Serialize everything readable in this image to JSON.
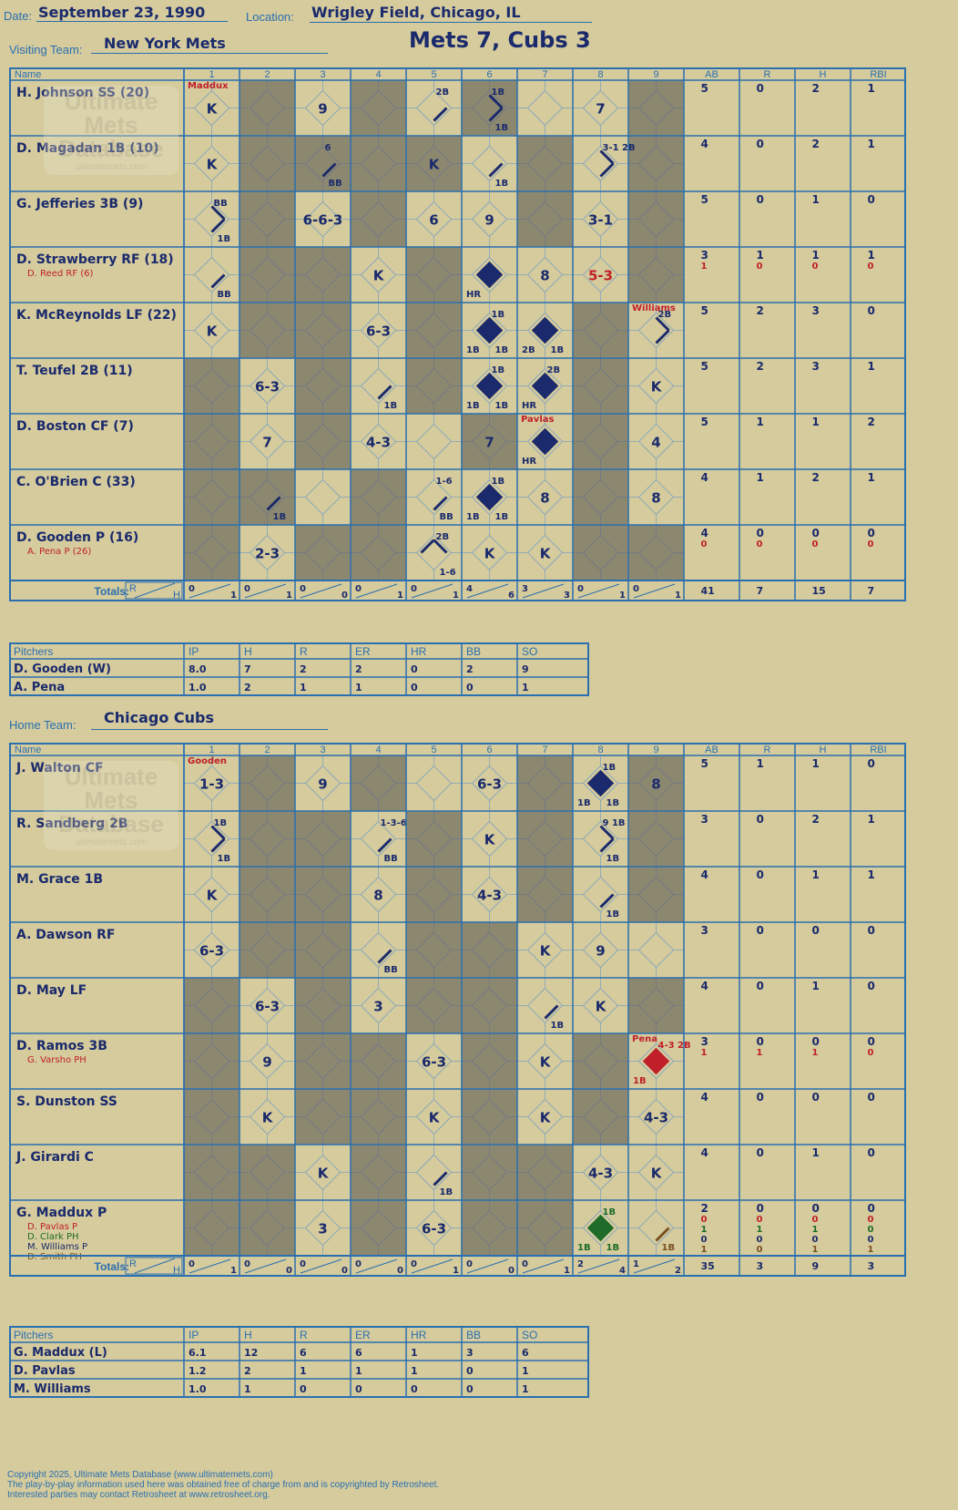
{
  "header": {
    "date_label": "Date:",
    "date": "September 23, 1990",
    "location_label": "Location:",
    "location": "Wrigley Field, Chicago, IL",
    "title": "Mets 7, Cubs 3",
    "visiting_label": "Visiting Team:",
    "visiting_team": "New York Mets",
    "home_label": "Home Team:",
    "home_team": "Chicago Cubs"
  },
  "watermark": "Ultimate Mets Database ultimatemets.com",
  "columns": {
    "name": "Name",
    "innings": [
      "1",
      "2",
      "3",
      "4",
      "5",
      "6",
      "7",
      "8",
      "9"
    ],
    "stats": [
      "AB",
      "R",
      "H",
      "RBI"
    ],
    "totals": "Totals:",
    "rh": [
      "R",
      "H"
    ]
  },
  "pitch_columns": [
    "Pitchers",
    "IP",
    "H",
    "R",
    "ER",
    "HR",
    "BB",
    "SO"
  ],
  "colors": {
    "ink": "#1a2a6c",
    "red": "#c0202a",
    "green": "#1f6b2a",
    "brown": "#7a5020",
    "grid": "#2a6fb0",
    "shade": "#8c8870",
    "paper": "#d5cb9d"
  },
  "visitors": {
    "shade": [
      [
        2,
        4,
        6,
        9
      ],
      [
        2,
        3,
        4,
        5,
        7,
        9
      ],
      [
        2,
        4,
        7,
        9
      ],
      [
        2,
        3,
        5,
        9
      ],
      [
        2,
        3,
        5,
        8
      ],
      [
        1,
        3,
        5,
        8
      ],
      [
        1,
        3,
        6,
        8
      ],
      [
        1,
        2,
        4,
        8
      ],
      [
        1,
        3,
        4,
        8,
        9
      ]
    ],
    "rows": [
      {
        "name": "H. Johnson SS (20)",
        "subs": [],
        "stats": [
          [
            "5",
            "0",
            "2",
            "1"
          ]
        ],
        "cells": [
          {
            "i": 1,
            "t": "K",
            "top": "Maddux"
          },
          {
            "i": 3,
            "t": "9"
          },
          {
            "i": 5,
            "legs": [
              1
            ],
            "nw": "2B"
          },
          {
            "i": 6,
            "legs": [
              1,
              2
            ],
            "nw": "1B",
            "se": "1B"
          },
          {
            "i": 8,
            "t": "7"
          }
        ]
      },
      {
        "name": "D. Magadan 1B (10)",
        "subs": [],
        "stats": [
          [
            "4",
            "0",
            "2",
            "1"
          ]
        ],
        "cells": [
          {
            "i": 1,
            "t": "K"
          },
          {
            "i": 3,
            "legs": [
              1
            ],
            "nw": "6",
            "se": "BB"
          },
          {
            "i": 5,
            "t": "K"
          },
          {
            "i": 6,
            "legs": [
              1
            ],
            "se": "1B"
          },
          {
            "i": 8,
            "legs": [
              1,
              2
            ],
            "nw": "3-1 2B"
          }
        ]
      },
      {
        "name": "G. Jefferies 3B (9)",
        "subs": [],
        "stats": [
          [
            "5",
            "0",
            "1",
            "0"
          ]
        ],
        "cells": [
          {
            "i": 1,
            "legs": [
              1,
              2
            ],
            "nw": "BB",
            "se": "1B"
          },
          {
            "i": 3,
            "t": "6-6-3"
          },
          {
            "i": 5,
            "t": "6"
          },
          {
            "i": 6,
            "t": "9"
          },
          {
            "i": 8,
            "t": "3-1"
          }
        ]
      },
      {
        "name": "D. Strawberry RF (18)",
        "subs": [
          {
            "name": "D. Reed RF (6)",
            "color": "red"
          }
        ],
        "stats": [
          [
            "3",
            "1",
            "1",
            "1"
          ],
          [
            "1",
            "0",
            "0",
            "0"
          ]
        ],
        "cells": [
          {
            "i": 1,
            "legs": [
              1
            ],
            "se": "BB"
          },
          {
            "i": 4,
            "t": "K"
          },
          {
            "i": 6,
            "fill": "ink",
            "sw": "HR"
          },
          {
            "i": 7,
            "t": "8"
          },
          {
            "i": 8,
            "t": "5-3",
            "color": "red"
          }
        ]
      },
      {
        "name": "K. McReynolds LF (22)",
        "subs": [],
        "stats": [
          [
            "5",
            "2",
            "3",
            "0"
          ]
        ],
        "cells": [
          {
            "i": 1,
            "t": "K"
          },
          {
            "i": 4,
            "t": "6-3"
          },
          {
            "i": 6,
            "fill": "ink",
            "nw": "1B",
            "sw": "1B",
            "se": "1B"
          },
          {
            "i": 7,
            "fill": "ink",
            "sw": "2B",
            "se": "1B"
          },
          {
            "i": 9,
            "legs": [
              1,
              2
            ],
            "nw": "2B",
            "top": "Williams"
          }
        ]
      },
      {
        "name": "T. Teufel 2B (11)",
        "subs": [],
        "stats": [
          [
            "5",
            "2",
            "3",
            "1"
          ]
        ],
        "cells": [
          {
            "i": 2,
            "t": "6-3"
          },
          {
            "i": 4,
            "legs": [
              1
            ],
            "se": "1B"
          },
          {
            "i": 6,
            "fill": "ink",
            "nw": "1B",
            "sw": "1B",
            "se": "1B"
          },
          {
            "i": 7,
            "fill": "ink",
            "nw": "2B",
            "sw": "HR"
          },
          {
            "i": 9,
            "t": "K"
          }
        ]
      },
      {
        "name": "D. Boston CF (7)",
        "subs": [],
        "stats": [
          [
            "5",
            "1",
            "1",
            "2"
          ]
        ],
        "cells": [
          {
            "i": 2,
            "t": "7"
          },
          {
            "i": 4,
            "t": "4-3"
          },
          {
            "i": 6,
            "t": "7"
          },
          {
            "i": 7,
            "fill": "ink",
            "sw": "HR",
            "top": "Pavlas"
          },
          {
            "i": 9,
            "t": "4"
          }
        ]
      },
      {
        "name": "C. O'Brien C (33)",
        "subs": [],
        "stats": [
          [
            "4",
            "1",
            "2",
            "1"
          ]
        ],
        "cells": [
          {
            "i": 2,
            "legs": [
              1
            ],
            "se": "1B"
          },
          {
            "i": 5,
            "legs": [
              1
            ],
            "nw": "1-6",
            "se": "BB"
          },
          {
            "i": 6,
            "fill": "ink",
            "nw": "1B",
            "sw": "1B",
            "se": "1B"
          },
          {
            "i": 7,
            "t": "8"
          },
          {
            "i": 9,
            "t": "8"
          }
        ]
      },
      {
        "name": "D. Gooden P (16)",
        "subs": [
          {
            "name": "A. Pena P (26)",
            "color": "red"
          }
        ],
        "stats": [
          [
            "4",
            "0",
            "0",
            "0"
          ],
          [
            "0",
            "0",
            "0",
            "0"
          ]
        ],
        "cells": [
          {
            "i": 2,
            "t": "2-3"
          },
          {
            "i": 5,
            "legs": [
              2,
              3
            ],
            "nw": "2B",
            "se": "1-6"
          },
          {
            "i": 6,
            "t": "K"
          },
          {
            "i": 7,
            "t": "K"
          }
        ]
      }
    ],
    "totals": [
      [
        "0",
        "1"
      ],
      [
        "0",
        "1"
      ],
      [
        "0",
        "0"
      ],
      [
        "0",
        "1"
      ],
      [
        "0",
        "1"
      ],
      [
        "4",
        "6"
      ],
      [
        "3",
        "3"
      ],
      [
        "0",
        "1"
      ],
      [
        "0",
        "1"
      ]
    ],
    "total_stats": [
      "41",
      "7",
      "15",
      "7"
    ]
  },
  "visitor_pitchers": [
    [
      "D. Gooden (W)",
      "8.0",
      "7",
      "2",
      "2",
      "0",
      "2",
      "9"
    ],
    [
      "A. Pena",
      "1.0",
      "2",
      "1",
      "1",
      "0",
      "0",
      "1"
    ]
  ],
  "home": {
    "shade": [
      [
        2,
        4,
        7,
        9
      ],
      [
        2,
        3,
        5,
        7,
        9
      ],
      [
        2,
        3,
        5,
        7,
        9
      ],
      [
        2,
        3,
        5,
        6
      ],
      [
        1,
        3,
        5,
        6,
        9
      ],
      [
        1,
        3,
        4,
        6,
        8
      ],
      [
        1,
        3,
        4,
        6,
        8
      ],
      [
        1,
        2,
        4,
        6,
        7
      ],
      [
        1,
        2,
        4,
        6,
        7
      ]
    ],
    "rows": [
      {
        "name": "J. Walton CF",
        "subs": [],
        "stats": [
          [
            "5",
            "1",
            "1",
            "0"
          ]
        ],
        "cells": [
          {
            "i": 1,
            "t": "1-3",
            "top": "Gooden"
          },
          {
            "i": 3,
            "t": "9"
          },
          {
            "i": 6,
            "t": "6-3"
          },
          {
            "i": 8,
            "fill": "ink",
            "nw": "1B",
            "sw": "1B",
            "se": "1B"
          },
          {
            "i": 9,
            "t": "8"
          }
        ]
      },
      {
        "name": "R. Sandberg 2B",
        "subs": [],
        "stats": [
          [
            "3",
            "0",
            "2",
            "1"
          ]
        ],
        "cells": [
          {
            "i": 1,
            "legs": [
              1,
              2
            ],
            "nw": "1B",
            "se": "1B"
          },
          {
            "i": 4,
            "legs": [
              1
            ],
            "nw": "1-3-6",
            "se": "BB"
          },
          {
            "i": 6,
            "t": "K"
          },
          {
            "i": 8,
            "legs": [
              1,
              2
            ],
            "nw": "9 1B",
            "se": "1B"
          }
        ]
      },
      {
        "name": "M. Grace 1B",
        "subs": [],
        "stats": [
          [
            "4",
            "0",
            "1",
            "1"
          ]
        ],
        "cells": [
          {
            "i": 1,
            "t": "K"
          },
          {
            "i": 4,
            "t": "8"
          },
          {
            "i": 6,
            "t": "4-3"
          },
          {
            "i": 8,
            "legs": [
              1
            ],
            "se": "1B"
          }
        ]
      },
      {
        "name": "A. Dawson RF",
        "subs": [],
        "stats": [
          [
            "3",
            "0",
            "0",
            "0"
          ]
        ],
        "cells": [
          {
            "i": 1,
            "t": "6-3"
          },
          {
            "i": 4,
            "legs": [
              1
            ],
            "se": "BB"
          },
          {
            "i": 7,
            "t": "K"
          },
          {
            "i": 8,
            "t": "9"
          }
        ]
      },
      {
        "name": "D. May LF",
        "subs": [],
        "stats": [
          [
            "4",
            "0",
            "1",
            "0"
          ]
        ],
        "cells": [
          {
            "i": 2,
            "t": "6-3"
          },
          {
            "i": 4,
            "t": "3"
          },
          {
            "i": 7,
            "legs": [
              1
            ],
            "se": "1B"
          },
          {
            "i": 8,
            "t": "K"
          }
        ]
      },
      {
        "name": "D. Ramos 3B",
        "subs": [
          {
            "name": "G. Varsho PH",
            "color": "red"
          }
        ],
        "stats": [
          [
            "3",
            "0",
            "0",
            "0"
          ],
          [
            "1",
            "1",
            "1",
            "0"
          ]
        ],
        "cells": [
          {
            "i": 2,
            "t": "9"
          },
          {
            "i": 5,
            "t": "6-3"
          },
          {
            "i": 7,
            "t": "K"
          },
          {
            "i": 9,
            "fill": "red",
            "nw": "4-3 2B",
            "sw": "1B",
            "top": "Pena",
            "color": "red"
          }
        ]
      },
      {
        "name": "S. Dunston SS",
        "subs": [],
        "stats": [
          [
            "4",
            "0",
            "0",
            "0"
          ]
        ],
        "cells": [
          {
            "i": 2,
            "t": "K"
          },
          {
            "i": 5,
            "t": "K"
          },
          {
            "i": 7,
            "t": "K"
          },
          {
            "i": 9,
            "t": "4-3"
          }
        ]
      },
      {
        "name": "J. Girardi C",
        "subs": [],
        "stats": [
          [
            "4",
            "0",
            "1",
            "0"
          ]
        ],
        "cells": [
          {
            "i": 3,
            "t": "K"
          },
          {
            "i": 5,
            "legs": [
              1
            ],
            "se": "1B"
          },
          {
            "i": 8,
            "t": "4-3"
          },
          {
            "i": 9,
            "t": "K"
          }
        ]
      },
      {
        "name": "G. Maddux P",
        "subs": [
          {
            "name": "D. Pavlas P",
            "color": "red"
          },
          {
            "name": "D. Clark PH",
            "color": "green"
          },
          {
            "name": "M. Williams P",
            "color": "ink"
          },
          {
            "name": "D. Smith PH",
            "color": "brown"
          }
        ],
        "stats": [
          [
            "2",
            "0",
            "0",
            "0"
          ],
          [
            "0",
            "0",
            "0",
            "0"
          ],
          [
            "1",
            "1",
            "1",
            "0"
          ],
          [
            "0",
            "0",
            "0",
            "0"
          ],
          [
            "1",
            "0",
            "1",
            "1"
          ]
        ],
        "cells": [
          {
            "i": 3,
            "t": "3"
          },
          {
            "i": 5,
            "t": "6-3"
          },
          {
            "i": 8,
            "fill": "green",
            "nw": "1B",
            "sw": "1B",
            "se": "1B",
            "color": "green"
          },
          {
            "i": 9,
            "legs": [
              1
            ],
            "se": "1B",
            "color": "brown"
          }
        ]
      }
    ],
    "totals": [
      [
        "0",
        "1"
      ],
      [
        "0",
        "0"
      ],
      [
        "0",
        "0"
      ],
      [
        "0",
        "0"
      ],
      [
        "0",
        "1"
      ],
      [
        "0",
        "0"
      ],
      [
        "0",
        "1"
      ],
      [
        "2",
        "4"
      ],
      [
        "1",
        "2"
      ]
    ],
    "total_stats": [
      "35",
      "3",
      "9",
      "3"
    ]
  },
  "home_pitchers": [
    [
      "G. Maddux (L)",
      "6.1",
      "12",
      "6",
      "6",
      "1",
      "3",
      "6"
    ],
    [
      "D. Pavlas",
      "1.2",
      "2",
      "1",
      "1",
      "1",
      "0",
      "1"
    ],
    [
      "M. Williams",
      "1.0",
      "1",
      "0",
      "0",
      "0",
      "0",
      "1"
    ]
  ],
  "footer": {
    "line1": "Copyright 2025, Ultimate Mets Database (www.ultimatemets.com)",
    "line2": "The play-by-play information used here was obtained free of charge from and is copyrighted by Retrosheet.",
    "line3": "Interested parties may contact Retrosheet at www.retrosheet.org."
  }
}
